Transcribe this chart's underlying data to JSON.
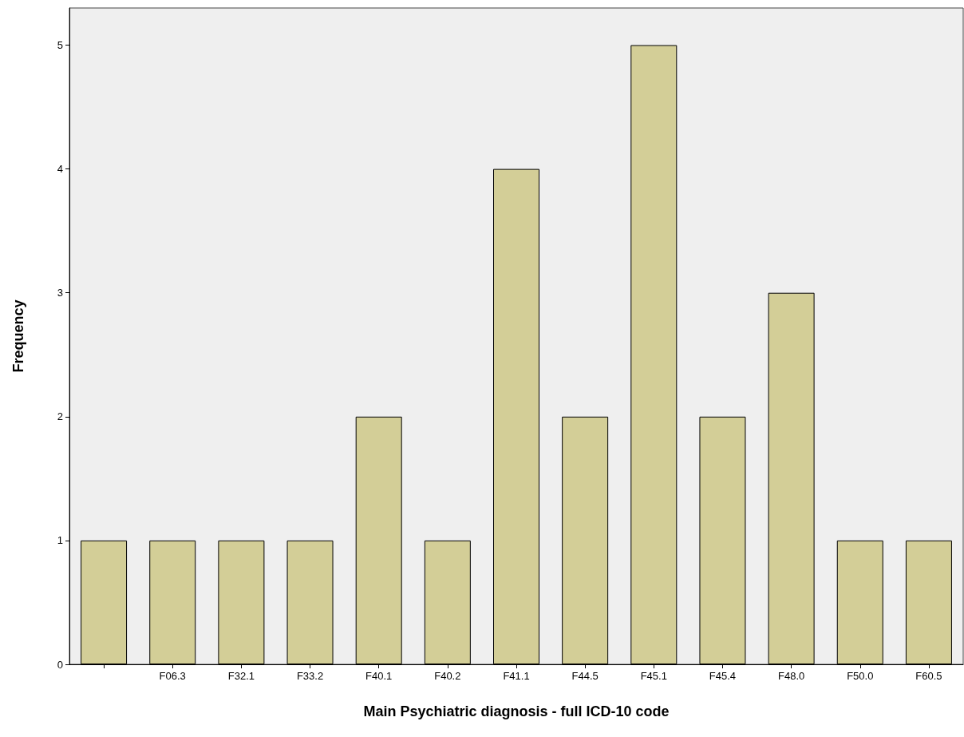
{
  "chart_data": {
    "type": "bar",
    "xlabel": "Main Psychiatric diagnosis - full ICD-10 code",
    "ylabel": "Frequency",
    "categories": [
      null,
      "F06.3",
      "F32.1",
      "F33.2",
      "F40.1",
      "F40.2",
      "F41.1",
      "F44.5",
      "F45.1",
      "F45.4",
      "F48.0",
      "F50.0",
      "F60.5"
    ],
    "values": [
      1,
      1,
      1,
      1,
      2,
      1,
      4,
      2,
      5,
      2,
      3,
      1,
      1
    ],
    "color": "#d3ce97",
    "ylim": [
      0,
      5.3
    ],
    "yticks": [
      0,
      1,
      2,
      3,
      4,
      5
    ],
    "grid": false
  }
}
